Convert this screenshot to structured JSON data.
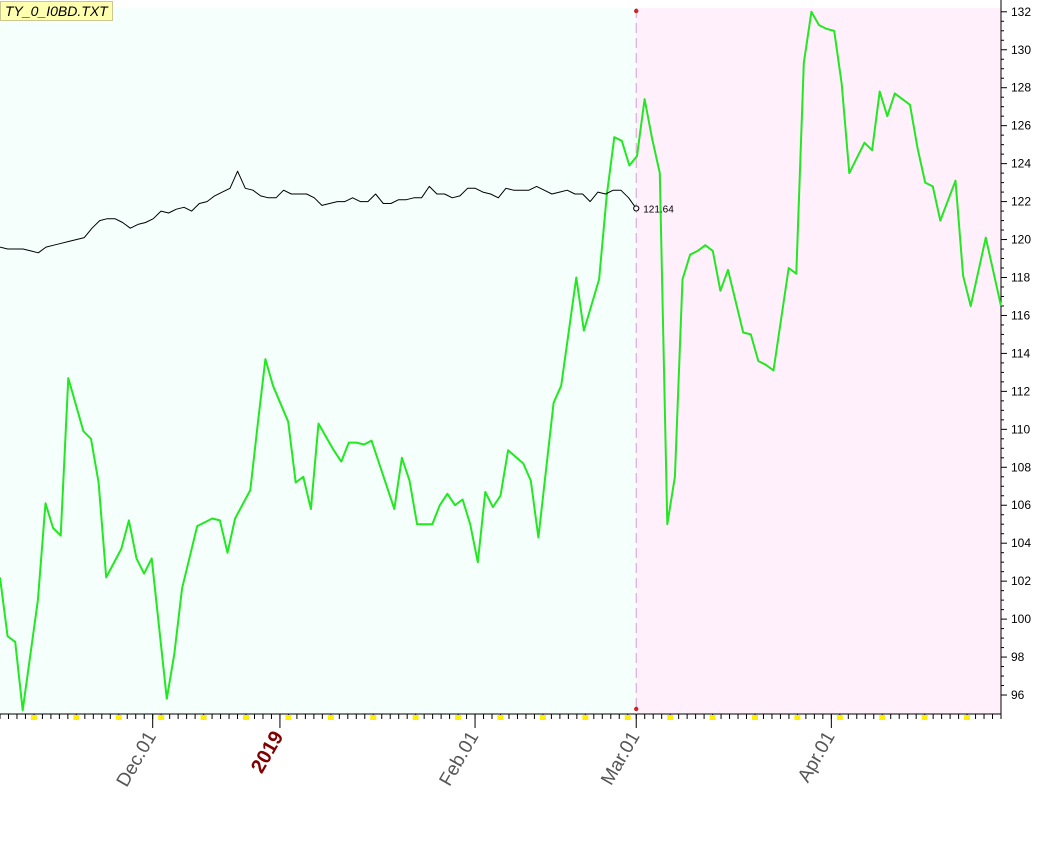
{
  "title": "TY_0_I0BD.TXT",
  "chart_data": {
    "type": "line",
    "ylim": [
      95,
      132.2
    ],
    "y_ticks": [
      96,
      98,
      100,
      102,
      104,
      106,
      108,
      110,
      112,
      114,
      116,
      118,
      120,
      122,
      124,
      126,
      128,
      130,
      132
    ],
    "x_labels": [
      {
        "text": "Dec.01",
        "index": 18,
        "year": false
      },
      {
        "text": "2019",
        "index": 33,
        "year": true
      },
      {
        "text": "Feb.01",
        "index": 56,
        "year": false
      },
      {
        "text": "Mar.01",
        "index": 75,
        "year": false
      },
      {
        "text": "Apr.01",
        "index": 98,
        "year": false
      }
    ],
    "split_index": 75,
    "n_points": 118,
    "regions": {
      "past_color": "#f5fffb",
      "future_color": "#fff0fc"
    },
    "series": [
      {
        "color": "#22e822",
        "values": [
          [
            0,
            102.2
          ],
          [
            1,
            99.1
          ],
          [
            2,
            98.8
          ],
          [
            3,
            95.2
          ],
          [
            5,
            101.0
          ],
          [
            6,
            106.1
          ],
          [
            7,
            104.8
          ],
          [
            8,
            104.4
          ],
          [
            9,
            112.7
          ],
          [
            11,
            109.9
          ],
          [
            12,
            109.5
          ],
          [
            13,
            107.2
          ],
          [
            14,
            102.2
          ],
          [
            16,
            103.7
          ],
          [
            17,
            105.2
          ],
          [
            18,
            103.2
          ],
          [
            19,
            102.4
          ],
          [
            20,
            103.2
          ],
          [
            22,
            95.8
          ],
          [
            23,
            98.2
          ],
          [
            24,
            101.6
          ],
          [
            26,
            104.9
          ],
          [
            28,
            105.3
          ],
          [
            29,
            105.2
          ],
          [
            30,
            103.5
          ],
          [
            31,
            105.3
          ],
          [
            33,
            106.8
          ],
          [
            34,
            110.3
          ],
          [
            35,
            113.7
          ],
          [
            36,
            112.3
          ],
          [
            38,
            110.4
          ],
          [
            39,
            107.2
          ],
          [
            40,
            107.5
          ],
          [
            41,
            105.8
          ],
          [
            42,
            110.3
          ],
          [
            44,
            108.9
          ],
          [
            45,
            108.3
          ],
          [
            46,
            109.3
          ],
          [
            47,
            109.3
          ],
          [
            48,
            109.2
          ],
          [
            49,
            109.4
          ],
          [
            52,
            105.8
          ],
          [
            53,
            108.5
          ],
          [
            54,
            107.3
          ],
          [
            55,
            105.0
          ],
          [
            57,
            105.0
          ],
          [
            58,
            106.0
          ],
          [
            59,
            106.6
          ],
          [
            60,
            106.0
          ],
          [
            61,
            106.3
          ],
          [
            62,
            105.0
          ],
          [
            63,
            103.0
          ],
          [
            64,
            106.7
          ],
          [
            65,
            105.9
          ],
          [
            66,
            106.5
          ],
          [
            67,
            108.9
          ],
          [
            69,
            108.2
          ],
          [
            70,
            107.3
          ],
          [
            71,
            104.3
          ],
          [
            73,
            111.4
          ],
          [
            74,
            112.3
          ],
          [
            76,
            118.0
          ],
          [
            77,
            115.2
          ],
          [
            79,
            117.9
          ],
          [
            80,
            122.3
          ],
          [
            81,
            125.4
          ],
          [
            82,
            125.2
          ],
          [
            83,
            123.9
          ],
          [
            84,
            124.4
          ],
          [
            85,
            127.4
          ],
          [
            86,
            125.3
          ],
          [
            87,
            123.5
          ],
          [
            88,
            105.0
          ],
          [
            89,
            107.5
          ],
          [
            90,
            117.9
          ],
          [
            91,
            119.2
          ],
          [
            92,
            119.4
          ],
          [
            93,
            119.7
          ],
          [
            94,
            119.4
          ],
          [
            95,
            117.3
          ],
          [
            96,
            118.4
          ],
          [
            98,
            115.1
          ],
          [
            99,
            115.0
          ],
          [
            100,
            113.6
          ],
          [
            101,
            113.4
          ],
          [
            102,
            113.1
          ],
          [
            104,
            118.5
          ],
          [
            105,
            118.2
          ],
          [
            106,
            129.3
          ],
          [
            107,
            132.0
          ],
          [
            108,
            131.3
          ],
          [
            109,
            131.1
          ],
          [
            110,
            131.0
          ],
          [
            111,
            128.2
          ],
          [
            112,
            123.5
          ],
          [
            114,
            125.1
          ],
          [
            115,
            124.7
          ],
          [
            116,
            127.8
          ],
          [
            117,
            126.5
          ],
          [
            118,
            127.7
          ],
          [
            120,
            127.1
          ],
          [
            121,
            124.8
          ],
          [
            122,
            123.0
          ],
          [
            123,
            122.8
          ],
          [
            124,
            121.0
          ],
          [
            126,
            123.1
          ],
          [
            127,
            118.1
          ],
          [
            128,
            116.5
          ],
          [
            130,
            120.1
          ],
          [
            132,
            116.5
          ]
        ]
      },
      {
        "color": "#000000",
        "values": [
          [
            0,
            119.6
          ],
          [
            1,
            119.5
          ],
          [
            2,
            119.5
          ],
          [
            3,
            119.5
          ],
          [
            4,
            119.4
          ],
          [
            5,
            119.3
          ],
          [
            6,
            119.6
          ],
          [
            7,
            119.7
          ],
          [
            8,
            119.8
          ],
          [
            9,
            119.9
          ],
          [
            10,
            120.0
          ],
          [
            11,
            120.1
          ],
          [
            12,
            120.6
          ],
          [
            13,
            121.0
          ],
          [
            14,
            121.1
          ],
          [
            15,
            121.1
          ],
          [
            16,
            120.9
          ],
          [
            17,
            120.6
          ],
          [
            18,
            120.8
          ],
          [
            19,
            120.9
          ],
          [
            20,
            121.1
          ],
          [
            21,
            121.5
          ],
          [
            22,
            121.4
          ],
          [
            23,
            121.6
          ],
          [
            24,
            121.7
          ],
          [
            25,
            121.5
          ],
          [
            26,
            121.9
          ],
          [
            27,
            122.0
          ],
          [
            28,
            122.3
          ],
          [
            29,
            122.5
          ],
          [
            30,
            122.7
          ],
          [
            31,
            123.6
          ],
          [
            32,
            122.7
          ],
          [
            33,
            122.6
          ],
          [
            34,
            122.3
          ],
          [
            35,
            122.2
          ],
          [
            36,
            122.2
          ],
          [
            37,
            122.6
          ],
          [
            38,
            122.4
          ],
          [
            39,
            122.4
          ],
          [
            40,
            122.4
          ],
          [
            41,
            122.2
          ],
          [
            42,
            121.8
          ],
          [
            43,
            121.9
          ],
          [
            44,
            122.0
          ],
          [
            45,
            122.0
          ],
          [
            46,
            122.2
          ],
          [
            47,
            122.0
          ],
          [
            48,
            122.0
          ],
          [
            49,
            122.4
          ],
          [
            50,
            121.9
          ],
          [
            51,
            121.9
          ],
          [
            52,
            122.1
          ],
          [
            53,
            122.1
          ],
          [
            54,
            122.2
          ],
          [
            55,
            122.2
          ],
          [
            56,
            122.8
          ],
          [
            57,
            122.4
          ],
          [
            58,
            122.4
          ],
          [
            59,
            122.2
          ],
          [
            60,
            122.3
          ],
          [
            61,
            122.7
          ],
          [
            62,
            122.7
          ],
          [
            63,
            122.5
          ],
          [
            64,
            122.4
          ],
          [
            65,
            122.2
          ],
          [
            66,
            122.7
          ],
          [
            67,
            122.6
          ],
          [
            68,
            122.6
          ],
          [
            69,
            122.6
          ],
          [
            70,
            122.8
          ],
          [
            71,
            122.6
          ],
          [
            72,
            122.4
          ],
          [
            73,
            122.5
          ],
          [
            74,
            122.6
          ],
          [
            75,
            122.4
          ],
          [
            76,
            122.4
          ],
          [
            77,
            122.0
          ],
          [
            78,
            122.5
          ],
          [
            79,
            122.4
          ],
          [
            80,
            122.6
          ],
          [
            81,
            122.6
          ],
          [
            82,
            122.2
          ],
          [
            83,
            121.64
          ]
        ],
        "last_label": "121.64",
        "last_index": 75
      }
    ]
  }
}
